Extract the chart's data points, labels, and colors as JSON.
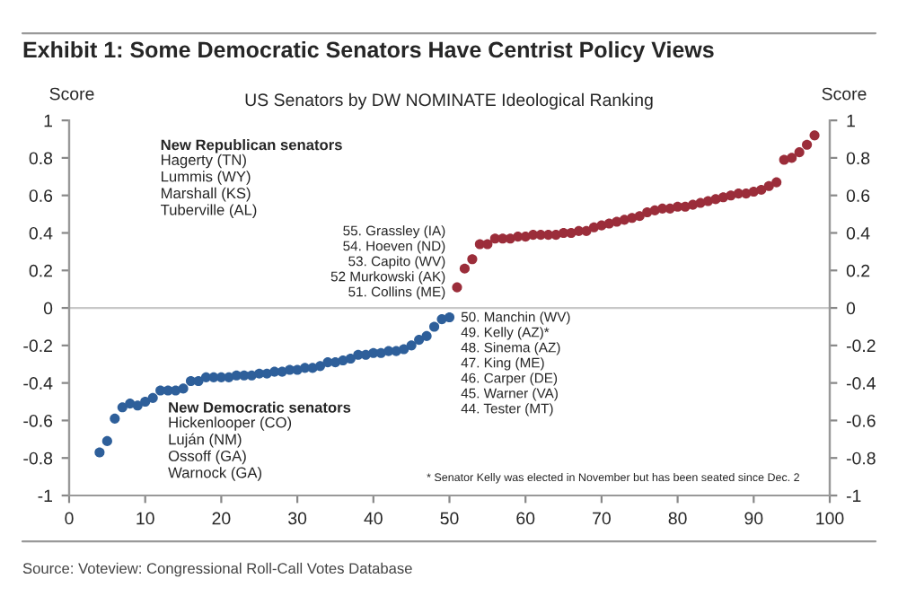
{
  "chart_data": {
    "type": "scatter",
    "title": "Exhibit 1: Some Democratic Senators Have Centrist Policy Views",
    "subtitle": "US Senators by DW NOMINATE Ideological Ranking",
    "ylabel": "Score",
    "y2label": "Score",
    "xlim": [
      0,
      100
    ],
    "xticks": [
      0,
      10,
      20,
      30,
      40,
      50,
      60,
      70,
      80,
      90,
      100
    ],
    "ylim": [
      -1,
      1
    ],
    "yticks": [
      -1,
      -0.8,
      -0.6,
      -0.4,
      -0.2,
      0,
      0.2,
      0.4,
      0.6,
      0.8,
      1
    ],
    "y2lim": [
      -1,
      1
    ],
    "y2ticks": [
      -1,
      -0.8,
      -0.6,
      -0.4,
      -0.2,
      0,
      0.2,
      0.4,
      0.6,
      0.8,
      1
    ],
    "marker": "circle",
    "grid": false,
    "series": [
      {
        "color": "#2e5f9a",
        "x": [
          4,
          5,
          6,
          7,
          8,
          9,
          10,
          11,
          12,
          13,
          14,
          15,
          16,
          17,
          18,
          19,
          20,
          21,
          22,
          23,
          24,
          25,
          26,
          27,
          28,
          29,
          30,
          31,
          32,
          33,
          34,
          35,
          36,
          37,
          38,
          39,
          40,
          41,
          42,
          43,
          44,
          45,
          46,
          47,
          48,
          49,
          50
        ],
        "values": [
          -0.77,
          -0.71,
          -0.59,
          -0.53,
          -0.51,
          -0.52,
          -0.5,
          -0.48,
          -0.44,
          -0.44,
          -0.44,
          -0.43,
          -0.39,
          -0.39,
          -0.37,
          -0.37,
          -0.37,
          -0.37,
          -0.36,
          -0.36,
          -0.36,
          -0.35,
          -0.35,
          -0.34,
          -0.34,
          -0.33,
          -0.33,
          -0.32,
          -0.32,
          -0.31,
          -0.29,
          -0.29,
          -0.28,
          -0.27,
          -0.25,
          -0.25,
          -0.24,
          -0.24,
          -0.23,
          -0.23,
          -0.22,
          -0.2,
          -0.17,
          -0.15,
          -0.1,
          -0.06,
          -0.05
        ]
      },
      {
        "color": "#9b2d3a",
        "x": [
          51,
          52,
          53,
          54,
          55,
          56,
          57,
          58,
          59,
          60,
          61,
          62,
          63,
          64,
          65,
          66,
          67,
          68,
          69,
          70,
          71,
          72,
          73,
          74,
          75,
          76,
          77,
          78,
          79,
          80,
          81,
          82,
          83,
          84,
          85,
          86,
          87,
          88,
          89,
          90,
          91,
          92,
          93,
          94,
          95,
          96,
          97,
          98
        ],
        "values": [
          0.11,
          0.21,
          0.26,
          0.34,
          0.34,
          0.37,
          0.37,
          0.37,
          0.38,
          0.38,
          0.39,
          0.39,
          0.39,
          0.39,
          0.4,
          0.4,
          0.41,
          0.41,
          0.43,
          0.44,
          0.45,
          0.46,
          0.47,
          0.48,
          0.49,
          0.51,
          0.52,
          0.53,
          0.53,
          0.54,
          0.54,
          0.55,
          0.56,
          0.57,
          0.58,
          0.59,
          0.6,
          0.61,
          0.61,
          0.62,
          0.63,
          0.65,
          0.67,
          0.79,
          0.8,
          0.83,
          0.87,
          0.92
        ]
      }
    ],
    "ref_lines": [
      {
        "axis": "y",
        "value": 0,
        "color": "#c8c8c8"
      }
    ],
    "annotations": [
      "New Republican senators",
      "Hagerty (TN)\nLummis (WY)\nMarshall (KS)\nTuberville (AL)",
      "New Democratic senators",
      "Hickenlooper (CO)\nLuján (NM)\nOssoff (GA)\nWarnock (GA)",
      "55. Grassley (IA)\n54. Hoeven (ND)\n53. Capito (WV)\n52 Murkowski (AK)\n51. Collins (ME)",
      "50. Manchin (WV)\n49. Kelly (AZ)*\n48. Sinema (AZ)\n47. King (ME)\n46. Carper (DE)\n45. Warner (VA)\n44. Tester (MT)",
      "* Senator Kelly was elected in November but has been seated since Dec. 2",
      "Source: Voteview: Congressional Roll-Call Votes Database"
    ]
  }
}
